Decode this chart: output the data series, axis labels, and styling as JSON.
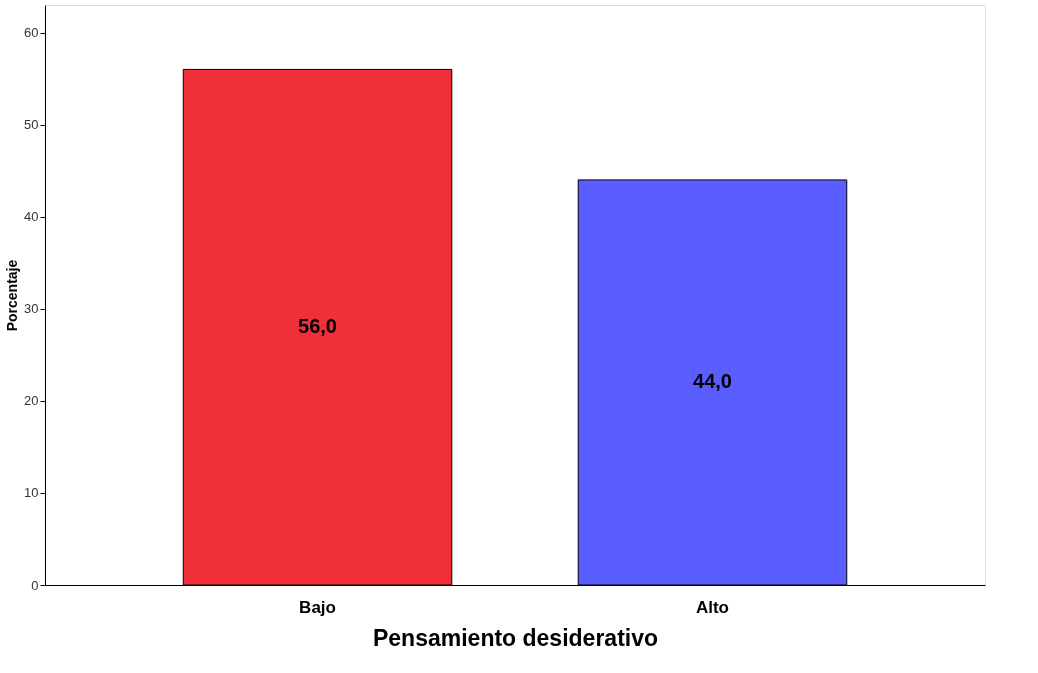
{
  "chart_data": {
    "type": "bar",
    "xlabel": "Pensamiento desiderativo",
    "ylabel": "Porcentaje",
    "categories": [
      "Bajo",
      "Alto"
    ],
    "values": [
      56.0,
      44.0
    ],
    "colors": [
      "#ef3038",
      "#5a5eff"
    ],
    "value_labels": [
      "56,0",
      "44,0"
    ],
    "ylim": [
      0,
      63
    ],
    "yticks": [
      0,
      10,
      20,
      30,
      40,
      50,
      60
    ],
    "grid": false
  }
}
